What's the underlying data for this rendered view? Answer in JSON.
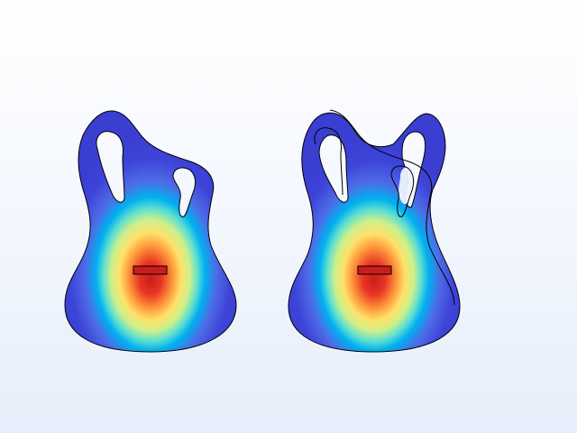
{
  "scene": {
    "background_top": "#ffffff",
    "background_bottom": "#e6eefb",
    "colormap": [
      "#ffffff",
      "#e4ecff",
      "#b8cdf9",
      "#5a73ea",
      "#3d44d8",
      "#00b0f0",
      "#5fe0d0",
      "#cdf08a",
      "#ffe16a",
      "#ff9a3c",
      "#f03e2a",
      "#c81e1e"
    ],
    "outline_color": "#000000",
    "cold_color": "#3d44d8",
    "hot_color": "#c81e1e"
  },
  "plots": [
    {
      "name": "original-shape"
    },
    {
      "name": "optimized-shape"
    }
  ]
}
